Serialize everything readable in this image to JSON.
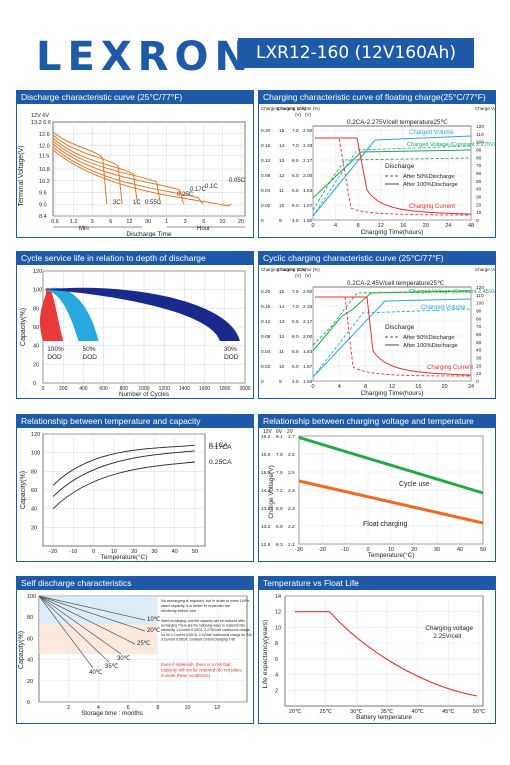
{
  "header": {
    "logo": "LEXRON",
    "model": "LXR12-160 (12V160Ah)"
  },
  "panels": {
    "p1": {
      "title": "Discharge characteristic curve (25°C/77°F)"
    },
    "p2": {
      "title": "Charging characteristic curve of floating charge(25°C/77°F)"
    },
    "p3": {
      "title": "Cycle service life in relation to depth of discharge"
    },
    "p4": {
      "title": "Cyclic charging characteristic curve (25°C/77°F)"
    },
    "p5": {
      "title": "Relationship between temperature and capacity"
    },
    "p6": {
      "title": "Relationship between charging voltage and temperature"
    },
    "p7": {
      "title": "Self discharge characteristics"
    },
    "p8": {
      "title": "Temperature vs Float Life"
    }
  },
  "chart_data": [
    {
      "id": "discharge",
      "type": "line",
      "title": "Discharge characteristic curve (25°C/77°F)",
      "ylabel": "Terminal Voltage(V)",
      "xlabel": "Discharge Time",
      "ylim": [
        8.4,
        13.2
      ],
      "yticks": [
        {
          "v": 12.6,
          "l": "12.6"
        },
        {
          "v": 12.0,
          "l": "12.0"
        },
        {
          "v": 11.5,
          "l": "11.5"
        },
        {
          "v": 10.8,
          "l": "10.8"
        },
        {
          "v": 10.2,
          "l": "10.2"
        },
        {
          "v": 9.6,
          "l": "9.6"
        },
        {
          "v": 9.0,
          "l": "9.0"
        },
        {
          "v": 8.4,
          "l": "8.4"
        }
      ],
      "top_label": "12V 6V",
      "top_sub": "13.2  6.6",
      "xticks": [
        "0.6",
        "1.2",
        "3",
        "6",
        "12",
        "30",
        "1",
        "3",
        "5",
        "10",
        "20"
      ],
      "xunits": [
        "Min",
        "Hour"
      ],
      "series": [
        {
          "name": "3C",
          "end": 0.28
        },
        {
          "name": "1C",
          "end": 0.36
        },
        {
          "name": "0.55C",
          "end": 0.44
        },
        {
          "name": "0.25C",
          "end": 0.56
        },
        {
          "name": "0.17C",
          "end": 0.68
        },
        {
          "name": "0.1C",
          "end": 0.78
        },
        {
          "name": "0.05C",
          "end": 0.93
        }
      ],
      "color": "#e0772b"
    },
    {
      "id": "float",
      "type": "line",
      "title": "Charging characteristic curve of floating charge(25°C/77°F)",
      "xlabel": "Charging Time(hours)",
      "xlim": [
        0,
        48
      ],
      "xticks": [
        0,
        4,
        8,
        12,
        16,
        20,
        24,
        48
      ],
      "xticklabels": [
        "0",
        "4",
        "8",
        "12",
        "16",
        "20",
        "24",
        "48"
      ],
      "annotation": "0.2CA-2.275V/cell temperature25℃",
      "col_heads": [
        "Charging Current (CA)",
        "Charging Volume (%)",
        "(V)",
        "(V)"
      ],
      "left_cols": [
        [
          "0.20",
          "15",
          "7.5",
          "2.50"
        ],
        [
          "0.16",
          "14",
          "7.0",
          "2.33"
        ],
        [
          "0.12",
          "13",
          "6.5",
          "2.17"
        ],
        [
          "0.08",
          "12",
          "6.0",
          "2.00"
        ],
        [
          "0.04",
          "11",
          "5.5",
          "1.83"
        ],
        [
          "0.02",
          "10",
          "5.0",
          "1.67"
        ],
        [
          "0",
          "9",
          "4.5",
          "1.50"
        ]
      ],
      "right_head": "Charge Volume (%)",
      "right_ticks": [
        "120",
        "110",
        "100",
        "90",
        "80",
        "70",
        "60",
        "50",
        "40",
        "30",
        "20",
        "10",
        "0"
      ],
      "labels": [
        "Charged Volume",
        "Charged Voltage (Constant 2.275V/cell)",
        "Charging Current"
      ],
      "legend_title": "Discharge",
      "legend": [
        "After 50%Discharge",
        "After 100%Discharge"
      ]
    },
    {
      "id": "cycle",
      "type": "area",
      "title": "Cycle service life in relation to depth of discharge",
      "ylabel": "Capacity(%)",
      "xlabel": "Number of Cycles",
      "ylim": [
        0,
        120
      ],
      "xlim": [
        0,
        2000
      ],
      "yticks": [
        0,
        20,
        40,
        60,
        80,
        100,
        120
      ],
      "xticks": [
        0,
        200,
        400,
        600,
        800,
        1000,
        1200,
        1400,
        1600,
        1800,
        2000
      ],
      "series": [
        {
          "name": "100% DOD",
          "end": 200,
          "color": "#e83a3a"
        },
        {
          "name": "50% DOD",
          "end": 550,
          "color": "#29a8df"
        },
        {
          "name": "30% DOD",
          "end": 1950,
          "color": "#1a2a8c"
        }
      ]
    },
    {
      "id": "cyclic",
      "type": "line",
      "title": "Cyclic charging characteristic curve (25°C/77°F)",
      "xlabel": "Charging Time(hours)",
      "xlim": [
        0,
        24
      ],
      "xticks": [
        0,
        4,
        8,
        12,
        16,
        20,
        24
      ],
      "annotation": "0.2CA-2.45V/cell temperature25℃",
      "col_heads": [
        "Charging Current (CA)",
        "Charging Volume (%)",
        "(V)",
        "(V)"
      ],
      "left_cols": [
        [
          "0.20",
          "15",
          "7.5",
          "2.50"
        ],
        [
          "0.16",
          "14",
          "7.0",
          "2.33"
        ],
        [
          "0.12",
          "13",
          "6.5",
          "2.17"
        ],
        [
          "0.08",
          "12",
          "6.0",
          "2.00"
        ],
        [
          "0.04",
          "11",
          "5.5",
          "1.83"
        ],
        [
          "0.02",
          "10",
          "5.0",
          "1.67"
        ],
        [
          "0",
          "9",
          "4.5",
          "1.50"
        ]
      ],
      "right_head": "Charge Volume (%)",
      "right_ticks": [
        "120",
        "110",
        "100",
        "90",
        "80",
        "70",
        "60",
        "50",
        "40",
        "30",
        "20",
        "10",
        "0"
      ],
      "labels": [
        "Charged Voltage (Constant 2.45V/cell)",
        "Charged Volume",
        "Charging Current"
      ],
      "legend_title": "Discharge",
      "legend": [
        "After 50%Discharge",
        "After 100%Discharge"
      ]
    },
    {
      "id": "tempcap",
      "type": "line",
      "title": "Relationship between temperature and capacity",
      "ylabel": "Capacity(%)",
      "xlabel": "Temperature(°C)",
      "ylim": [
        0,
        120
      ],
      "xlim": [
        -25,
        55
      ],
      "yticks": [
        20,
        40,
        60,
        80,
        100,
        120
      ],
      "xticks": [
        -20,
        -10,
        0,
        10,
        20,
        30,
        40,
        50
      ],
      "series": [
        {
          "name": "0.1CA",
          "y0": 65,
          "y1": 108
        },
        {
          "name": "0.17CA",
          "y0": 53,
          "y1": 102
        },
        {
          "name": "0.25CA",
          "y0": 40,
          "y1": 90
        }
      ]
    },
    {
      "id": "chgvolt",
      "type": "line",
      "title": "Relationship between charging voltage and temperature",
      "ylabel": "Charge Voltage(V)",
      "xlabel": "Temperature(°C)",
      "xlim": [
        -30,
        50
      ],
      "xticks": [
        -30,
        -20,
        -10,
        0,
        10,
        20,
        30,
        40,
        50
      ],
      "col_heads": [
        "12V",
        "6V",
        "2V"
      ],
      "yrows": [
        [
          "16.2",
          "8.1",
          "2.7"
        ],
        [
          "15.6",
          "7.8",
          "2.6"
        ],
        [
          "15.0",
          "7.5",
          "2.5"
        ],
        [
          "14.4",
          "7.2",
          "2.4"
        ],
        [
          "13.8",
          "6.9",
          "2.3"
        ],
        [
          "13.2",
          "6.6",
          "2.2"
        ],
        [
          "12.6",
          "6.3",
          "2.1"
        ]
      ],
      "series": [
        {
          "name": "Cycle use",
          "y0": 16.15,
          "y1": 14.3,
          "color": "#22a844"
        },
        {
          "name": "Float charging",
          "y0": 14.7,
          "y1": 13.3,
          "color": "#ee6a1e"
        }
      ]
    },
    {
      "id": "selfdis",
      "type": "line",
      "title": "Self discharge characteristics",
      "ylabel": "Capacity(%)",
      "xlabel": "Storage time : months",
      "ylim": [
        0,
        100
      ],
      "xlim": [
        0,
        14
      ],
      "yticks": [
        0,
        20,
        40,
        60,
        80,
        100
      ],
      "xticks": [
        2,
        4,
        6,
        8,
        10,
        12
      ],
      "series": [
        {
          "name": "10℃"
        },
        {
          "name": "20℃"
        },
        {
          "name": "25℃"
        },
        {
          "name": "30℃"
        },
        {
          "name": "35℃"
        },
        {
          "name": "40℃"
        }
      ],
      "notes": [
        "No recharging is required, but in order to meet 100% rated capacity, it is better to replenish the electricity before use",
        "Need recharging, and the capacity can be restored after recharging There are the following ways to replenish the electricity 1.Current 0.05CA, 2.275V/cell continuous charge for 3d 2.Current 0.20CA, 2.4V/cell continuous charge for 24h 3.Current 0.05CA, constant current charging 7-8h",
        "Even if replenish, there is a risk that capacity will not be restored (do not place it under these conditions)"
      ]
    },
    {
      "id": "floatlife",
      "type": "line",
      "title": "Temperature vs Float Life",
      "ylabel": "Life expectancy(years)",
      "xlabel": "Battery temperature",
      "ylim": [
        0,
        14
      ],
      "yticks": [
        2,
        4,
        6,
        8,
        10,
        12,
        14
      ],
      "xticks": [
        "20℃",
        "25℃",
        "30℃",
        "35℃",
        "40℃",
        "45℃",
        "50℃"
      ],
      "annotation": "Charging voltage 2.25V/cell",
      "flat_value": 12
    }
  ]
}
